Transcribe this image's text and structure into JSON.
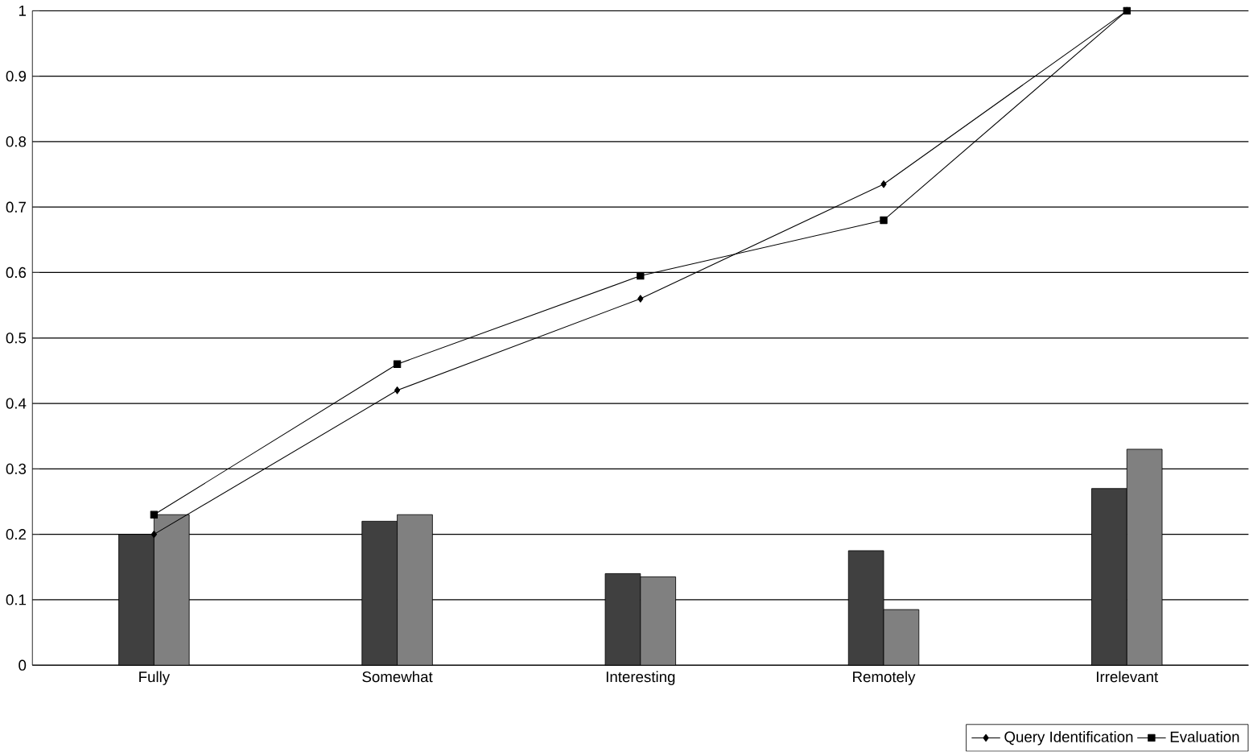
{
  "chart_data": {
    "type": "bar",
    "categories": [
      "Fully",
      "Somewhat",
      "Interesting",
      "Remotely",
      "Irrelevant"
    ],
    "series": [
      {
        "color": "#404040",
        "values": [
          0.2,
          0.22,
          0.14,
          0.175,
          0.27
        ]
      },
      {
        "color": "#808080",
        "values": [
          0.23,
          0.23,
          0.135,
          0.085,
          0.33
        ]
      },
      {
        "type": "line",
        "name": "Query Identification",
        "color": "#000000",
        "marker": "diamond",
        "values": [
          0.2,
          0.42,
          0.56,
          0.735,
          1.0
        ]
      },
      {
        "type": "line",
        "name": "Evaluation",
        "color": "#000000",
        "marker": "square",
        "values": [
          0.23,
          0.46,
          0.595,
          0.68,
          1.0
        ]
      }
    ],
    "ylim": [
      0,
      1
    ],
    "yticks": [
      0,
      0.1,
      0.2,
      0.3,
      0.4,
      0.5,
      0.6,
      0.7,
      0.8,
      0.9,
      1
    ],
    "grid": "y",
    "legend": "bottom right"
  }
}
